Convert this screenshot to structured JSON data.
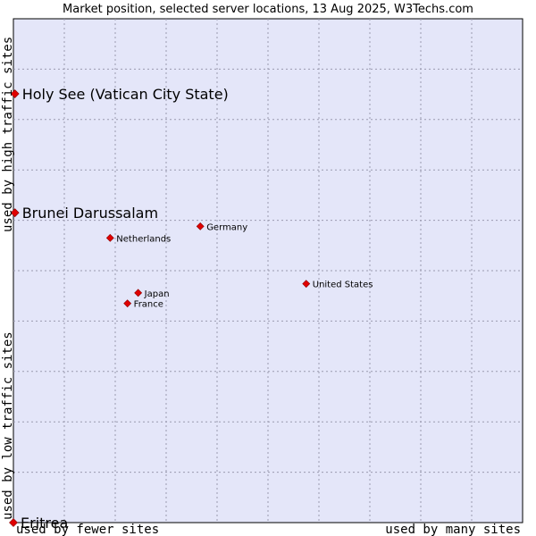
{
  "chart_data": {
    "type": "scatter",
    "title": "Market position, selected server locations, 13 Aug 2025, W3Techs.com",
    "xlabel_left": "used by fewer sites",
    "xlabel_right": "used by many sites",
    "ylabel_top": "used by high traffic sites",
    "ylabel_bottom": "used by low traffic sites",
    "xlim": [
      0,
      100
    ],
    "ylim": [
      0,
      100
    ],
    "grid": true,
    "points": [
      {
        "name": "Holy See (Vatican City State)",
        "x": 0.3,
        "y": 85.1,
        "size": "large"
      },
      {
        "name": "Brunei Darussalam",
        "x": 0.3,
        "y": 61.5,
        "size": "large"
      },
      {
        "name": "Germany",
        "x": 36.7,
        "y": 58.8,
        "size": "small"
      },
      {
        "name": "Netherlands",
        "x": 19.0,
        "y": 56.5,
        "size": "small"
      },
      {
        "name": "United States",
        "x": 57.5,
        "y": 47.4,
        "size": "small"
      },
      {
        "name": "Japan",
        "x": 24.5,
        "y": 45.6,
        "size": "small"
      },
      {
        "name": "France",
        "x": 22.4,
        "y": 43.5,
        "size": "small"
      },
      {
        "name": "Eritrea",
        "x": 0.0,
        "y": 0.0,
        "size": "large"
      }
    ]
  }
}
